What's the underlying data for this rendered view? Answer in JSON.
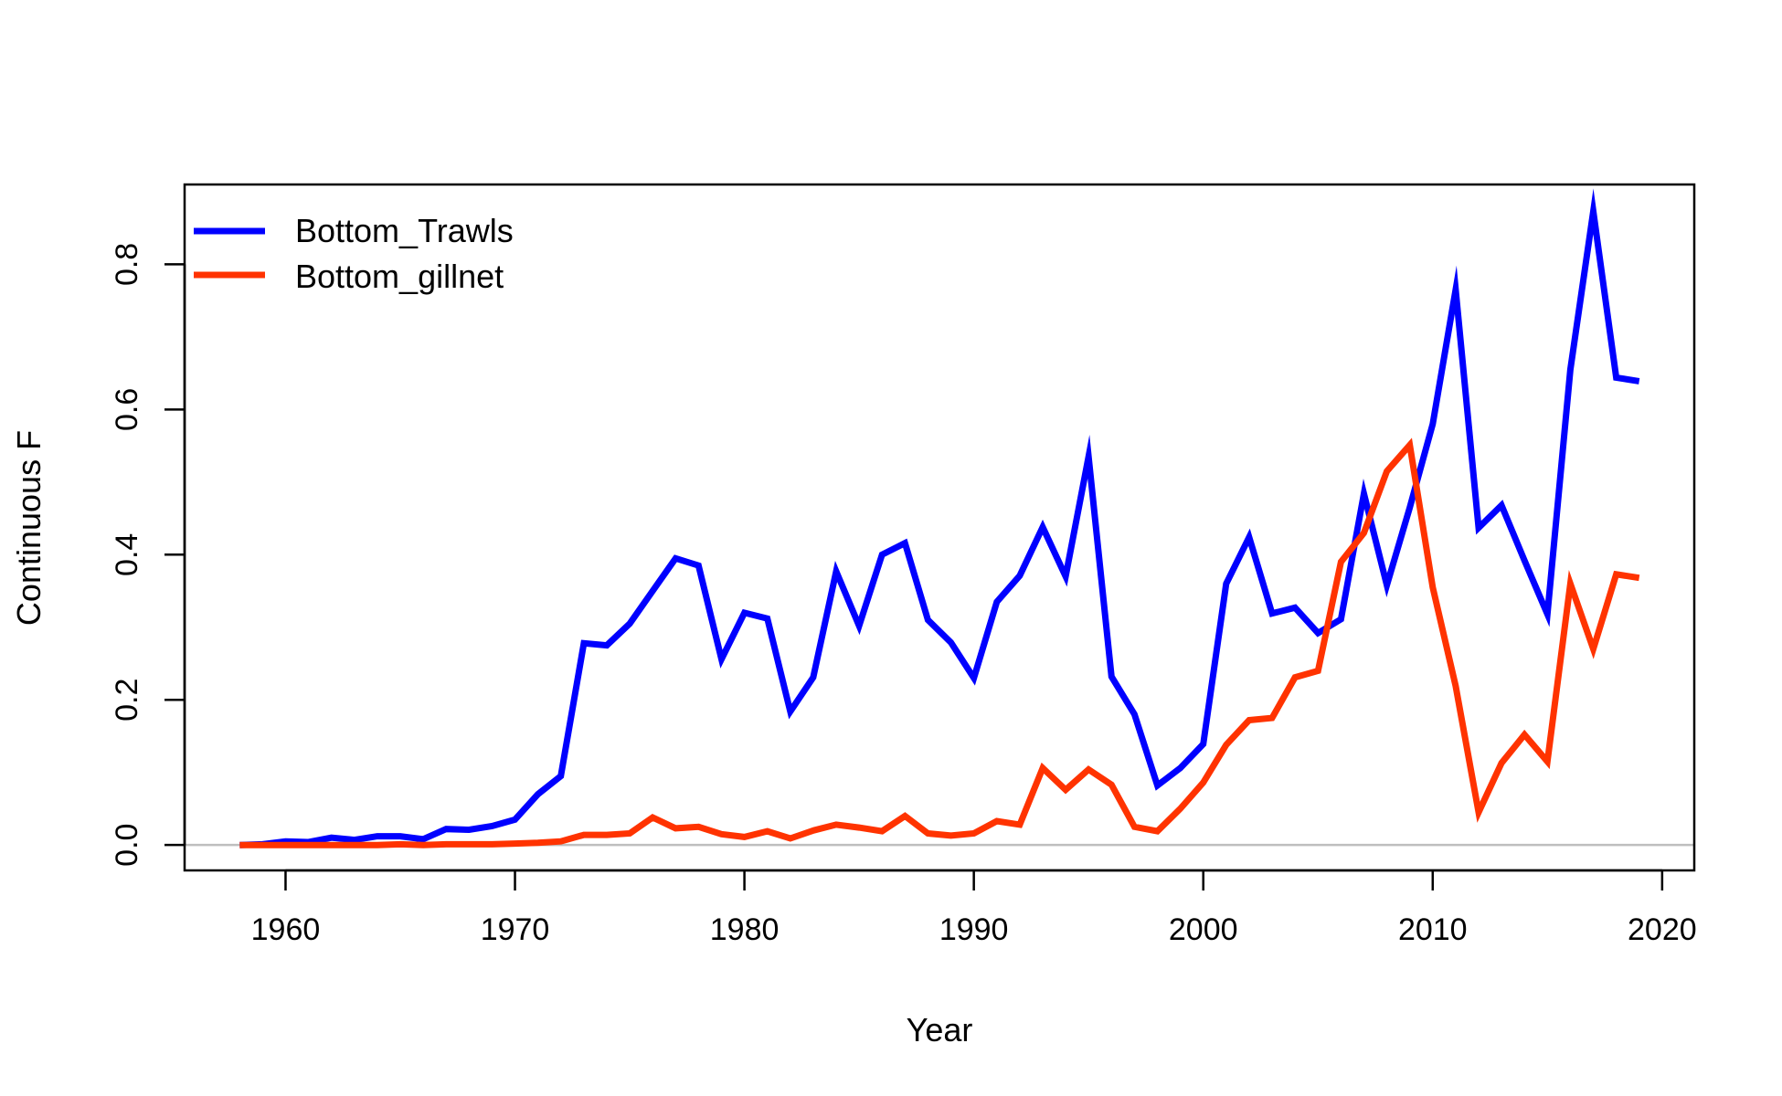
{
  "chart_data": {
    "type": "line",
    "title": "",
    "xlabel": "Year",
    "ylabel": "Continuous F",
    "xlim": [
      1955.6,
      2021.4
    ],
    "ylim": [
      -0.035,
      0.91
    ],
    "xticks": [
      1960,
      1970,
      1980,
      1990,
      2000,
      2010,
      2020
    ],
    "yticks": [
      0.0,
      0.2,
      0.4,
      0.6,
      0.8
    ],
    "ytick_labels": [
      "0.0",
      "0.2",
      "0.4",
      "0.6",
      "0.8"
    ],
    "grid": false,
    "reference_line": {
      "y": 0,
      "color": "#bebebe"
    },
    "legend_position": "top-left",
    "x": [
      1958,
      1959,
      1960,
      1961,
      1962,
      1963,
      1964,
      1965,
      1966,
      1967,
      1968,
      1969,
      1970,
      1971,
      1972,
      1973,
      1974,
      1975,
      1976,
      1977,
      1978,
      1979,
      1980,
      1981,
      1982,
      1983,
      1984,
      1985,
      1986,
      1987,
      1988,
      1989,
      1990,
      1991,
      1992,
      1993,
      1994,
      1995,
      1996,
      1997,
      1998,
      1999,
      2000,
      2001,
      2002,
      2003,
      2004,
      2005,
      2006,
      2007,
      2008,
      2009,
      2010,
      2011,
      2012,
      2013,
      2014,
      2015,
      2016,
      2017,
      2018,
      2019
    ],
    "series": [
      {
        "name": "Bottom_Trawls",
        "color": "#0000ff",
        "values": [
          0.0,
          0.001,
          0.005,
          0.004,
          0.01,
          0.007,
          0.012,
          0.012,
          0.008,
          0.022,
          0.021,
          0.026,
          0.035,
          0.07,
          0.095,
          0.278,
          0.275,
          0.305,
          0.35,
          0.395,
          0.385,
          0.256,
          0.32,
          0.312,
          0.184,
          0.231,
          0.377,
          0.302,
          0.4,
          0.416,
          0.31,
          0.279,
          0.23,
          0.335,
          0.371,
          0.438,
          0.37,
          0.535,
          0.232,
          0.18,
          0.082,
          0.106,
          0.139,
          0.36,
          0.424,
          0.319,
          0.327,
          0.292,
          0.311,
          0.484,
          0.358,
          0.465,
          0.58,
          0.765,
          0.437,
          0.468,
          0.392,
          0.318,
          0.655,
          0.873,
          0.644,
          0.639
        ]
      },
      {
        "name": "Bottom_gillnet",
        "color": "#ff3300",
        "values": [
          0.0,
          0.0,
          0.0,
          0.0,
          0.0,
          0.0,
          0.0,
          0.001,
          0.0,
          0.001,
          0.001,
          0.001,
          0.002,
          0.003,
          0.005,
          0.014,
          0.014,
          0.016,
          0.038,
          0.023,
          0.025,
          0.015,
          0.011,
          0.019,
          0.009,
          0.02,
          0.028,
          0.024,
          0.019,
          0.04,
          0.016,
          0.013,
          0.016,
          0.033,
          0.028,
          0.106,
          0.076,
          0.104,
          0.083,
          0.025,
          0.019,
          0.05,
          0.086,
          0.138,
          0.172,
          0.175,
          0.231,
          0.24,
          0.39,
          0.43,
          0.515,
          0.551,
          0.355,
          0.219,
          0.045,
          0.113,
          0.152,
          0.115,
          0.36,
          0.27,
          0.373,
          0.368
        ]
      }
    ]
  }
}
